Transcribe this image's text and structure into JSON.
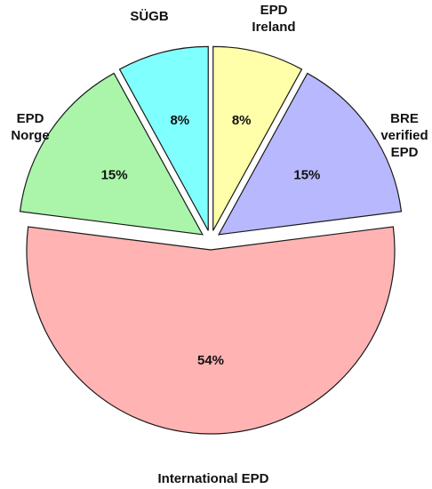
{
  "chart_data": {
    "type": "pie",
    "title": "",
    "slices": [
      {
        "label": [
          "EPD",
          "Ireland"
        ],
        "value": 8,
        "value_label": "8%",
        "color": "#ffffaa",
        "exploded": true
      },
      {
        "label": [
          "BRE",
          "verified",
          "EPD"
        ],
        "value": 15,
        "value_label": "15%",
        "color": "#b8b8ff",
        "exploded": true
      },
      {
        "label": [
          "International EPD"
        ],
        "value": 54,
        "value_label": "54%",
        "color": "#ffb3b3",
        "exploded": true
      },
      {
        "label": [
          "EPD",
          "Norge"
        ],
        "value": 15,
        "value_label": "15%",
        "color": "#aaf5aa",
        "exploded": true
      },
      {
        "label": [
          "SÜGB"
        ],
        "value": 8,
        "value_label": "8%",
        "color": "#80ffff",
        "exploded": true
      }
    ],
    "start_angle_deg": 0,
    "direction": "clockwise",
    "legend": "none",
    "labels_outside": true
  }
}
